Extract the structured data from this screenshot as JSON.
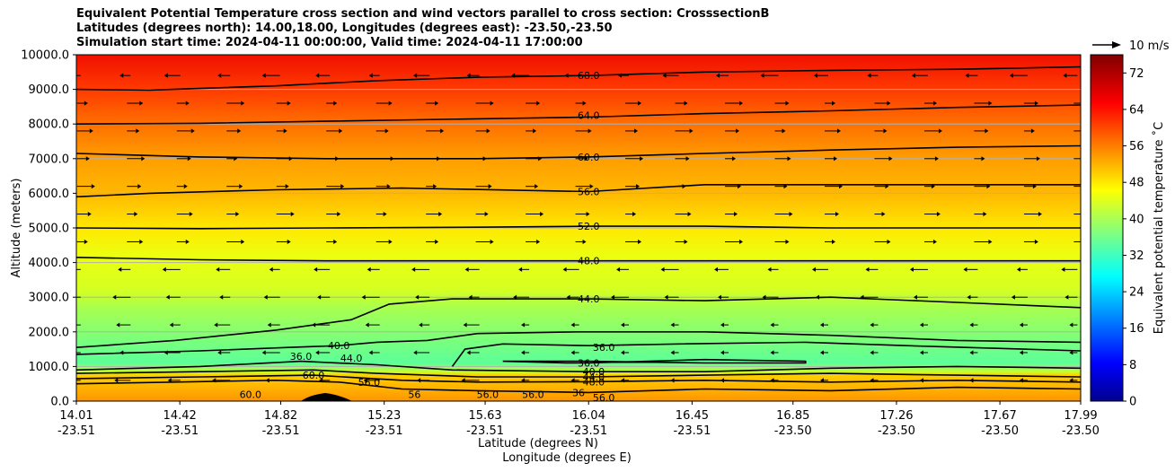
{
  "chart_data": {
    "type": "heatmap",
    "title_lines": [
      "Equivalent Potential Temperature cross section and wind vectors parallel to cross section: CrosssectionB",
      "Latitudes (degrees north): 14.00,18.00, Longitudes (degrees east): -23.50,-23.50",
      "Simulation start time: 2024-04-11 00:00:00, Valid time: 2024-04-11 17:00:00"
    ],
    "ylabel": "Altitude (meters)",
    "xlabel_lines": [
      "Latitude (degrees N)",
      "Longitude (degrees E)"
    ],
    "x_ticks": [
      {
        "lat": "14.01",
        "lon": "-23.51"
      },
      {
        "lat": "14.42",
        "lon": "-23.51"
      },
      {
        "lat": "14.82",
        "lon": "-23.51"
      },
      {
        "lat": "15.23",
        "lon": "-23.51"
      },
      {
        "lat": "15.63",
        "lon": "-23.51"
      },
      {
        "lat": "16.04",
        "lon": "-23.51"
      },
      {
        "lat": "16.45",
        "lon": "-23.51"
      },
      {
        "lat": "16.85",
        "lon": "-23.50"
      },
      {
        "lat": "17.26",
        "lon": "-23.50"
      },
      {
        "lat": "17.67",
        "lon": "-23.50"
      },
      {
        "lat": "17.99",
        "lon": "-23.50"
      }
    ],
    "y_ticks": [
      "0.0",
      "1000.0",
      "2000.0",
      "3000.0",
      "4000.0",
      "5000.0",
      "6000.0",
      "7000.0",
      "8000.0",
      "9000.0",
      "10000.0"
    ],
    "xlim": [
      14.01,
      17.99
    ],
    "ylim": [
      0,
      10000
    ],
    "grid": "horizontal",
    "colorbar": {
      "label": "Equivalent potential temperature $^\\circ$C",
      "label_display": "Equivalent potential temperature ˚C",
      "ticks": [
        "0",
        "8",
        "16",
        "24",
        "32",
        "40",
        "48",
        "56",
        "64",
        "72"
      ],
      "range": [
        0,
        76
      ],
      "colormap": "jet"
    },
    "quiver_key": "10 m/s",
    "contour_labels": [
      {
        "value": "68.0",
        "x": 16.04,
        "y": 9400
      },
      {
        "value": "64.0",
        "x": 16.04,
        "y": 8250
      },
      {
        "value": "60.0",
        "x": 16.04,
        "y": 7050
      },
      {
        "value": "56.0",
        "x": 16.04,
        "y": 6050
      },
      {
        "value": "52.0",
        "x": 16.04,
        "y": 5050
      },
      {
        "value": "48.0",
        "x": 16.04,
        "y": 4050
      },
      {
        "value": "44.0",
        "x": 16.04,
        "y": 2950
      },
      {
        "value": "40.0",
        "x": 15.05,
        "y": 1600
      },
      {
        "value": "36.0",
        "x": 14.9,
        "y": 1300
      },
      {
        "value": "44.0",
        "x": 15.1,
        "y": 1250
      },
      {
        "value": "60.0",
        "x": 14.95,
        "y": 750
      },
      {
        "value": "56.0",
        "x": 15.17,
        "y": 550
      },
      {
        "value": "60.0",
        "x": 14.7,
        "y": 200
      },
      {
        "value": "56",
        "x": 15.35,
        "y": 200
      },
      {
        "value": "56.0",
        "x": 15.64,
        "y": 200
      },
      {
        "value": "56.0",
        "x": 15.82,
        "y": 200
      },
      {
        "value": "36.0",
        "x": 16.1,
        "y": 1550
      },
      {
        "value": "36.0",
        "x": 16.04,
        "y": 1100
      },
      {
        "value": "40.0",
        "x": 16.06,
        "y": 850
      },
      {
        "value": "44.0",
        "x": 16.06,
        "y": 700
      },
      {
        "value": "48.0",
        "x": 16.06,
        "y": 560
      },
      {
        "value": "36",
        "x": 16.0,
        "y": 250
      },
      {
        "value": "56.0",
        "x": 16.1,
        "y": 100
      }
    ],
    "contour_lines": [
      {
        "value": 68,
        "points": [
          [
            14.01,
            9000
          ],
          [
            14.3,
            8980
          ],
          [
            14.8,
            9100
          ],
          [
            15.2,
            9250
          ],
          [
            15.6,
            9350
          ],
          [
            16.04,
            9400
          ],
          [
            16.5,
            9500
          ],
          [
            17.0,
            9550
          ],
          [
            17.5,
            9580
          ],
          [
            17.99,
            9650
          ]
        ]
      },
      {
        "value": 64,
        "points": [
          [
            14.01,
            8000
          ],
          [
            14.5,
            8020
          ],
          [
            15.0,
            8080
          ],
          [
            15.6,
            8150
          ],
          [
            16.04,
            8200
          ],
          [
            16.5,
            8300
          ],
          [
            17.0,
            8380
          ],
          [
            17.5,
            8480
          ],
          [
            17.99,
            8550
          ]
        ]
      },
      {
        "value": 60,
        "points": [
          [
            14.01,
            7150
          ],
          [
            14.5,
            7050
          ],
          [
            15.0,
            7000
          ],
          [
            15.6,
            7000
          ],
          [
            16.04,
            7050
          ],
          [
            16.5,
            7150
          ],
          [
            17.0,
            7250
          ],
          [
            17.5,
            7330
          ],
          [
            17.99,
            7370
          ]
        ]
      },
      {
        "value": 56,
        "points": [
          [
            14.01,
            5900
          ],
          [
            14.3,
            6000
          ],
          [
            14.8,
            6100
          ],
          [
            15.3,
            6150
          ],
          [
            16.04,
            6050
          ],
          [
            16.5,
            6250
          ],
          [
            17.0,
            6250
          ],
          [
            17.5,
            6250
          ],
          [
            17.99,
            6250
          ]
        ]
      },
      {
        "value": 52,
        "points": [
          [
            14.01,
            5000
          ],
          [
            14.5,
            4980
          ],
          [
            15.0,
            5000
          ],
          [
            15.6,
            5020
          ],
          [
            16.04,
            5050
          ],
          [
            16.5,
            5050
          ],
          [
            17.0,
            5000
          ],
          [
            17.5,
            5000
          ],
          [
            17.99,
            5000
          ]
        ]
      },
      {
        "value": 48,
        "points": [
          [
            14.01,
            4150
          ],
          [
            14.5,
            4080
          ],
          [
            15.0,
            4050
          ],
          [
            15.6,
            4050
          ],
          [
            16.04,
            4050
          ],
          [
            16.5,
            4050
          ],
          [
            17.0,
            4050
          ],
          [
            17.5,
            4050
          ],
          [
            17.99,
            4050
          ]
        ]
      },
      {
        "value": 44,
        "points": [
          [
            14.01,
            1550
          ],
          [
            14.4,
            1750
          ],
          [
            14.8,
            2050
          ],
          [
            15.1,
            2350
          ],
          [
            15.25,
            2800
          ],
          [
            15.5,
            2950
          ],
          [
            16.04,
            2950
          ],
          [
            16.5,
            2900
          ],
          [
            17.0,
            3000
          ],
          [
            17.5,
            2850
          ],
          [
            17.99,
            2700
          ]
        ]
      },
      {
        "value": 40,
        "points": [
          [
            14.01,
            1350
          ],
          [
            14.5,
            1450
          ],
          [
            14.85,
            1550
          ],
          [
            15.05,
            1600
          ],
          [
            15.2,
            1700
          ],
          [
            15.4,
            1750
          ],
          [
            15.6,
            1950
          ],
          [
            16.0,
            2000
          ],
          [
            16.5,
            2000
          ],
          [
            17.0,
            1900
          ],
          [
            17.5,
            1750
          ],
          [
            17.99,
            1700
          ]
        ]
      },
      {
        "value": 36,
        "points": [
          [
            15.5,
            1000
          ],
          [
            15.55,
            1500
          ],
          [
            15.7,
            1650
          ],
          [
            16.04,
            1600
          ],
          [
            16.4,
            1650
          ],
          [
            16.9,
            1700
          ],
          [
            17.3,
            1600
          ],
          [
            17.99,
            1450
          ]
        ]
      },
      {
        "value": 36,
        "points": [
          [
            15.7,
            1150
          ],
          [
            15.95,
            1100
          ],
          [
            16.04,
            1100
          ],
          [
            16.5,
            1200
          ],
          [
            16.9,
            1150
          ],
          [
            16.9,
            1100
          ],
          [
            16.5,
            1100
          ],
          [
            16.04,
            1150
          ],
          [
            15.7,
            1150
          ]
        ]
      },
      {
        "value": 40,
        "points": [
          [
            14.01,
            900
          ],
          [
            14.5,
            1000
          ],
          [
            14.9,
            1150
          ],
          [
            15.2,
            1050
          ],
          [
            15.5,
            900
          ],
          [
            16.04,
            850
          ],
          [
            16.5,
            850
          ],
          [
            17.0,
            950
          ],
          [
            17.5,
            1000
          ],
          [
            17.99,
            950
          ]
        ]
      },
      {
        "value": 44,
        "points": [
          [
            14.01,
            800
          ],
          [
            14.5,
            850
          ],
          [
            14.95,
            900
          ],
          [
            15.2,
            800
          ],
          [
            15.6,
            700
          ],
          [
            16.04,
            700
          ],
          [
            16.5,
            750
          ],
          [
            17.0,
            800
          ],
          [
            17.5,
            750
          ],
          [
            17.99,
            700
          ]
        ]
      },
      {
        "value": 48,
        "points": [
          [
            14.01,
            650
          ],
          [
            14.5,
            700
          ],
          [
            14.95,
            750
          ],
          [
            15.3,
            600
          ],
          [
            15.6,
            550
          ],
          [
            16.04,
            560
          ],
          [
            16.5,
            600
          ],
          [
            17.0,
            550
          ],
          [
            17.5,
            600
          ],
          [
            17.99,
            550
          ]
        ]
      },
      {
        "value": 56,
        "points": [
          [
            14.01,
            500
          ],
          [
            14.4,
            550
          ],
          [
            14.8,
            600
          ],
          [
            15.05,
            550
          ],
          [
            15.3,
            350
          ],
          [
            15.6,
            300
          ],
          [
            16.04,
            250
          ],
          [
            16.5,
            350
          ],
          [
            17.0,
            300
          ],
          [
            17.5,
            400
          ],
          [
            17.99,
            350
          ]
        ]
      }
    ]
  }
}
